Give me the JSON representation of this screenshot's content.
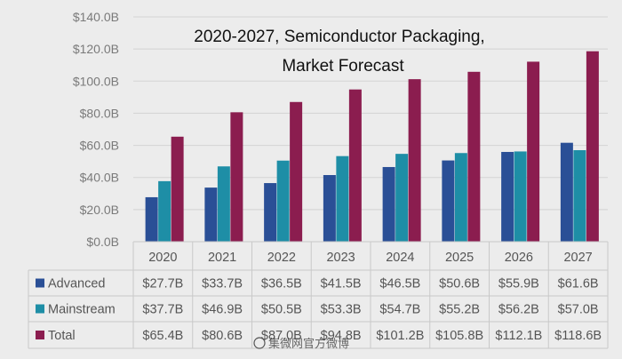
{
  "chart_data": {
    "type": "bar",
    "title_lines": [
      "2020-2027, Semiconductor Packaging,",
      "Market Forecast"
    ],
    "categories": [
      "2020",
      "2021",
      "2022",
      "2023",
      "2024",
      "2025",
      "2026",
      "2027"
    ],
    "ylim": [
      0,
      140
    ],
    "y_ticks": [
      {
        "value": 0,
        "label": "$0.0B"
      },
      {
        "value": 20,
        "label": "$20.0B"
      },
      {
        "value": 40,
        "label": "$40.0B"
      },
      {
        "value": 60,
        "label": "$60.0B"
      },
      {
        "value": 80,
        "label": "$80.0B"
      },
      {
        "value": 100,
        "label": "$100.0B"
      },
      {
        "value": 120,
        "label": "$120.0B"
      },
      {
        "value": 140,
        "label": "$140.0B"
      }
    ],
    "grid": true,
    "legend": "data-table",
    "series": [
      {
        "name": "Advanced",
        "color": "#2a4f96",
        "values": [
          27.7,
          33.7,
          36.5,
          41.5,
          46.5,
          50.6,
          55.9,
          61.6
        ],
        "labels": [
          "$27.7B",
          "$33.7B",
          "$36.5B",
          "$41.5B",
          "$46.5B",
          "$50.6B",
          "$55.9B",
          "$61.6B"
        ]
      },
      {
        "name": "Mainstream",
        "color": "#1e8ea6",
        "values": [
          37.7,
          46.9,
          50.5,
          53.3,
          54.7,
          55.2,
          56.2,
          57.0
        ],
        "labels": [
          "$37.7B",
          "$46.9B",
          "$50.5B",
          "$53.3B",
          "$54.7B",
          "$55.2B",
          "$56.2B",
          "$57.0B"
        ]
      },
      {
        "name": "Total",
        "color": "#8b1d4f",
        "values": [
          65.4,
          80.6,
          87.0,
          94.8,
          101.2,
          105.8,
          112.1,
          118.6
        ],
        "labels": [
          "$65.4B",
          "$80.6B",
          "$87.0B",
          "$94.8B",
          "$101.2B",
          "$105.8B",
          "$112.1B",
          "$118.6B"
        ]
      }
    ]
  },
  "watermark": "集微网官方微博"
}
